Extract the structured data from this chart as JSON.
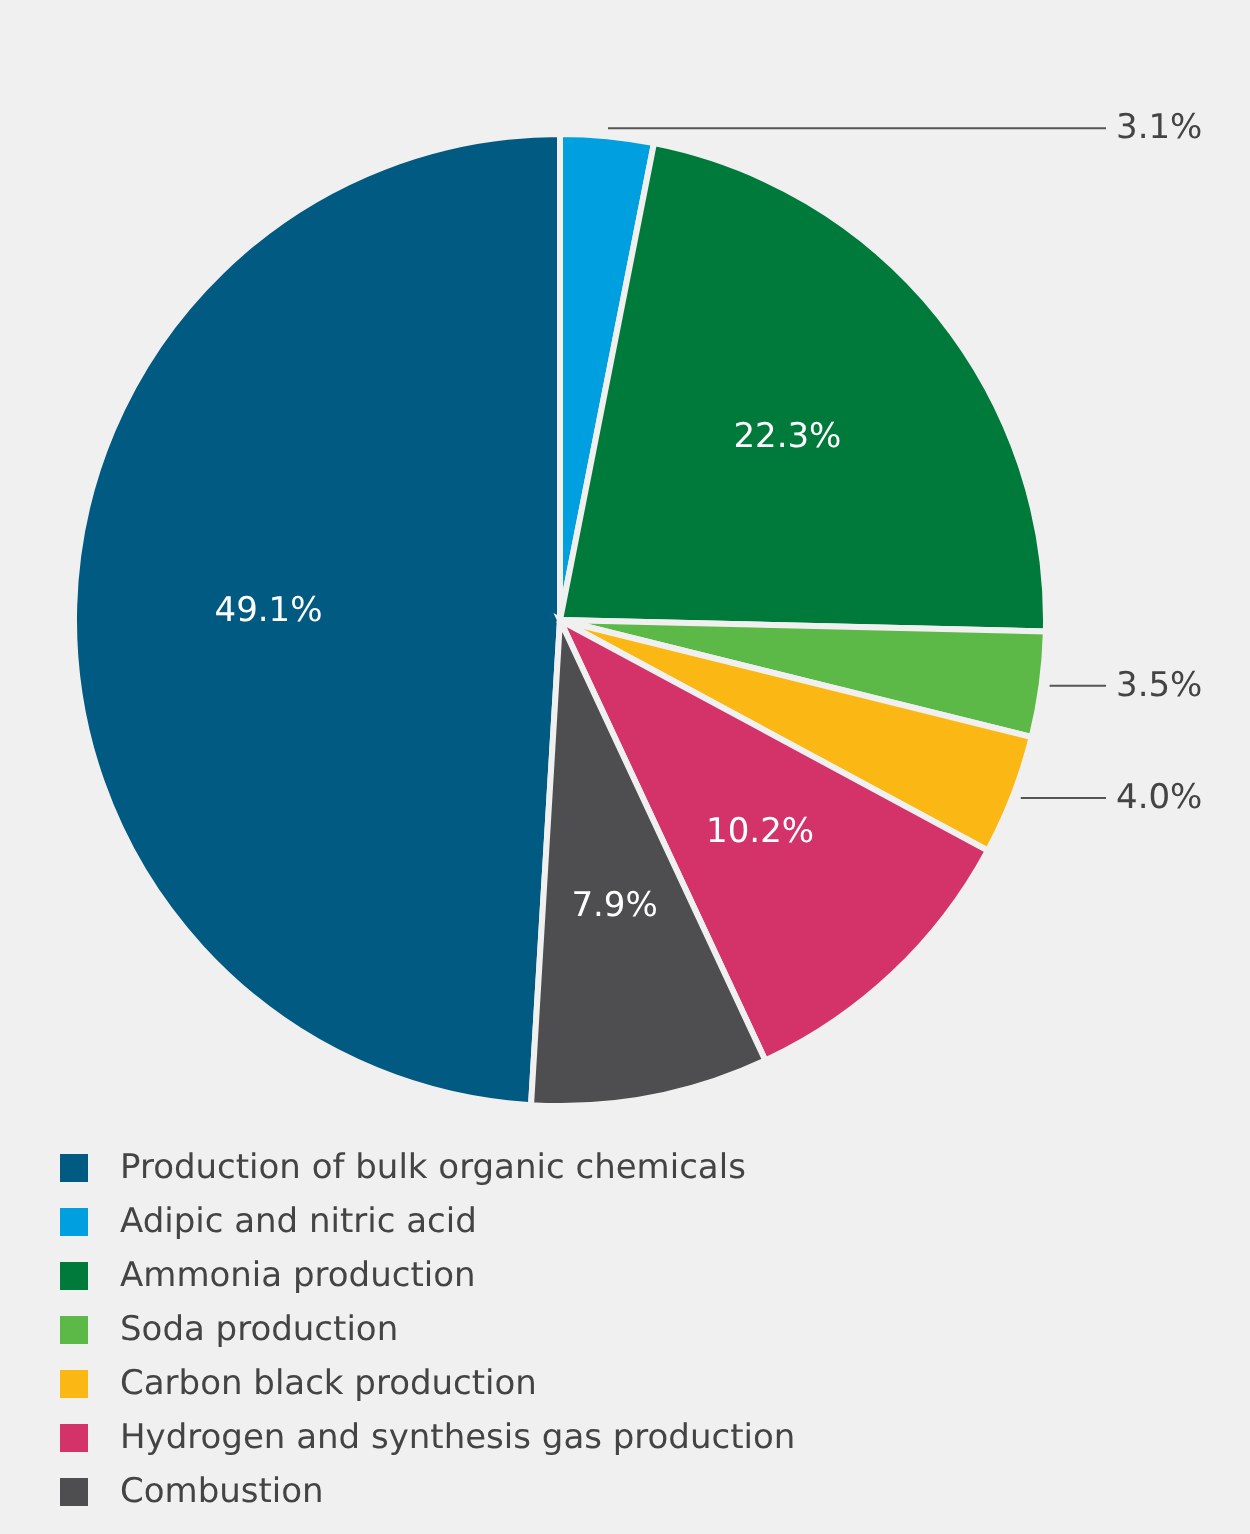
{
  "chart_data": {
    "type": "pie",
    "categories": [
      "Production of bulk organic chemicals",
      "Adipic and nitric acid",
      "Ammonia production",
      "Soda production",
      "Carbon black production",
      "Hydrogen and synthesis gas production",
      "Combustion"
    ],
    "values": [
      49.1,
      3.1,
      22.3,
      3.5,
      4.0,
      10.2,
      7.9
    ],
    "colors": [
      "#005a82",
      "#009fdf",
      "#007a3b",
      "#5cb947",
      "#fbb814",
      "#d43369",
      "#4e4d4f"
    ],
    "value_labels": [
      "49.1%",
      "3.1%",
      "22.3%",
      "3.5%",
      "4.0%",
      "10.2%",
      "7.9%"
    ],
    "legend": "bottom"
  }
}
